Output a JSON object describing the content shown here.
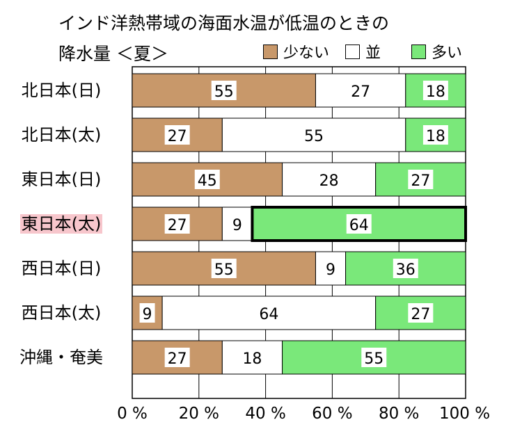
{
  "chart_data": {
    "type": "bar",
    "stacked": true,
    "orientation": "horizontal",
    "title_line1": "インド洋熱帯域の海面水温が低温のときの",
    "title_line2": "降水量 ＜夏＞",
    "categories": [
      "北日本(日)",
      "北日本(太)",
      "東日本(日)",
      "東日本(太)",
      "西日本(日)",
      "西日本(太)",
      "沖縄・奄美"
    ],
    "highlighted_category": "東日本(太)",
    "highlight_color": "#f7c6cc",
    "series": [
      {
        "name": "少ない",
        "color": "#c8986a",
        "values": [
          55,
          27,
          45,
          27,
          55,
          9,
          27
        ]
      },
      {
        "name": "並",
        "color": "#ffffff",
        "values": [
          27,
          55,
          28,
          9,
          9,
          64,
          18
        ]
      },
      {
        "name": "多い",
        "color": "#7ae87a",
        "values": [
          18,
          18,
          27,
          64,
          36,
          27,
          55
        ]
      }
    ],
    "emphasized_segment": {
      "category": "東日本(太)",
      "series": "多い"
    },
    "xlim": [
      0,
      100
    ],
    "xticks": [
      0,
      20,
      40,
      60,
      80,
      100
    ],
    "xtick_labels": [
      "0 %",
      "20 %",
      "40 %",
      "60 %",
      "80 %",
      "100 %"
    ],
    "grid": true,
    "legend_position": "top-right"
  }
}
